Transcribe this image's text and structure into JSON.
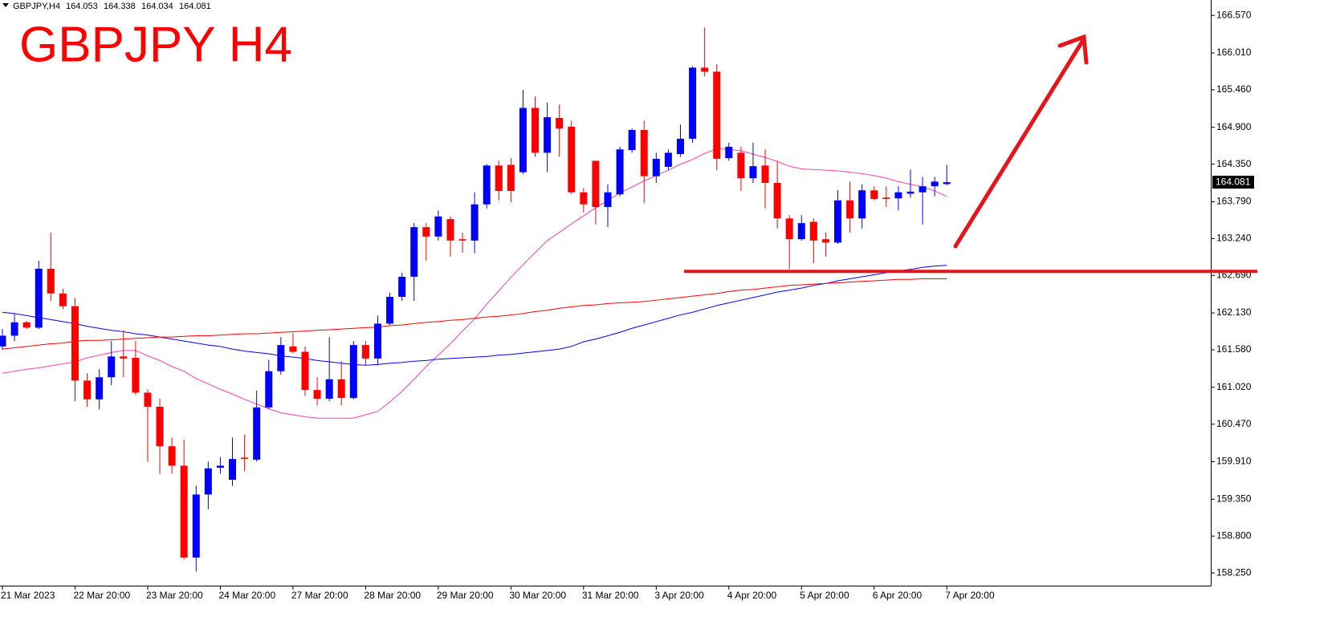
{
  "chart_data": {
    "type": "candlestick",
    "symbol": "GBPJPY,H4",
    "title": "GBPJPY H4",
    "up_color": "#0000ff",
    "down_color": "#ff0000",
    "categories": [
      "21 Mar 2023",
      null,
      null,
      null,
      null,
      null,
      "22 Mar 20:00",
      null,
      null,
      null,
      null,
      null,
      "23 Mar 20:00",
      null,
      null,
      null,
      null,
      null,
      "24 Mar 20:00",
      null,
      null,
      null,
      null,
      null,
      "27 Mar 20:00",
      null,
      null,
      null,
      null,
      null,
      "28 Mar 20:00",
      null,
      null,
      null,
      null,
      null,
      "29 Mar 20:00",
      null,
      null,
      null,
      null,
      null,
      "30 Mar 20:00",
      null,
      null,
      null,
      null,
      null,
      "31 Mar 20:00",
      null,
      null,
      null,
      null,
      null,
      "3 Apr 20:00",
      null,
      null,
      null,
      null,
      null,
      "4 Apr 20:00",
      null,
      null,
      null,
      null,
      null,
      "5 Apr 20:00",
      null,
      null,
      null,
      null,
      null,
      "6 Apr 20:00",
      null,
      null,
      null,
      null,
      null,
      "7 Apr 20:00"
    ],
    "open": [
      161.63,
      161.79,
      161.99,
      161.91,
      162.79,
      162.42,
      162.23,
      161.12,
      160.84,
      161.17,
      161.48,
      161.46,
      160.94,
      160.73,
      160.14,
      159.85,
      158.48,
      159.42,
      159.82,
      159.64,
      159.97,
      159.94,
      160.72,
      161.26,
      161.63,
      161.55,
      160.98,
      160.85,
      161.14,
      160.86,
      161.65,
      161.45,
      161.97,
      162.37,
      162.67,
      163.41,
      163.27,
      163.53,
      163.23,
      163.21,
      163.75,
      164.33,
      164.34,
      164.23,
      165.19,
      164.52,
      165.04,
      164.91,
      163.93,
      164.4,
      163.71,
      163.9,
      164.56,
      164.86,
      164.17,
      164.31,
      164.5,
      164.73,
      165.79,
      165.73,
      164.44,
      164.52,
      164.14,
      164.33,
      164.07,
      163.54,
      163.23,
      163.49,
      163.23,
      163.18,
      163.81,
      163.54,
      163.96,
      163.85,
      163.84,
      163.91,
      163.93,
      164.02,
      164.053
    ],
    "high": [
      161.89,
      162.11,
      162.01,
      162.91,
      163.33,
      162.49,
      162.35,
      161.23,
      161.29,
      161.71,
      161.87,
      161.71,
      160.99,
      160.85,
      160.27,
      160.24,
      159.55,
      159.91,
      159.98,
      160.27,
      160.31,
      160.97,
      161.43,
      161.77,
      161.83,
      161.63,
      161.17,
      161.77,
      161.41,
      161.71,
      161.71,
      162.09,
      162.43,
      162.73,
      163.47,
      163.47,
      163.66,
      163.57,
      163.33,
      163.93,
      164.35,
      164.4,
      164.44,
      165.46,
      165.36,
      165.27,
      165.24,
      165.0,
      163.99,
      164.4,
      164.05,
      164.61,
      164.88,
      165.0,
      164.52,
      164.57,
      164.94,
      165.81,
      166.39,
      165.84,
      164.67,
      164.61,
      164.67,
      164.57,
      164.4,
      163.59,
      163.59,
      163.54,
      163.33,
      163.96,
      164.09,
      164.05,
      164.02,
      164.02,
      164.02,
      164.27,
      164.16,
      164.16,
      164.338
    ],
    "low": [
      161.58,
      161.71,
      161.89,
      161.89,
      162.31,
      162.19,
      160.81,
      160.73,
      160.69,
      161.05,
      161.17,
      160.91,
      159.91,
      159.73,
      159.73,
      158.45,
      158.27,
      159.2,
      159.73,
      159.55,
      159.77,
      159.91,
      160.69,
      161.21,
      161.53,
      160.89,
      160.75,
      160.81,
      160.75,
      160.84,
      161.35,
      161.35,
      161.95,
      162.31,
      162.31,
      162.91,
      163.21,
      162.97,
      163.03,
      163.02,
      163.69,
      163.81,
      163.78,
      164.2,
      164.46,
      164.23,
      164.46,
      163.9,
      163.63,
      163.45,
      163.41,
      163.87,
      164.52,
      163.77,
      164.07,
      164.26,
      164.46,
      164.67,
      165.66,
      164.26,
      164.4,
      163.95,
      164.07,
      163.69,
      163.39,
      162.79,
      163.21,
      162.87,
      162.97,
      163.16,
      163.33,
      163.39,
      163.81,
      163.71,
      163.66,
      163.85,
      163.45,
      163.87,
      164.034
    ],
    "close": [
      161.79,
      161.99,
      161.91,
      162.79,
      162.42,
      162.23,
      161.12,
      160.84,
      161.17,
      161.48,
      161.45,
      160.94,
      160.73,
      160.14,
      159.85,
      158.48,
      159.42,
      159.81,
      159.85,
      159.95,
      159.95,
      160.72,
      161.26,
      161.65,
      161.55,
      160.98,
      160.85,
      161.14,
      160.86,
      161.65,
      161.45,
      161.97,
      162.37,
      162.67,
      163.41,
      163.27,
      163.57,
      163.21,
      163.21,
      163.75,
      164.33,
      163.95,
      163.95,
      165.19,
      164.52,
      165.05,
      164.88,
      163.93,
      163.75,
      163.71,
      163.93,
      164.57,
      164.86,
      164.17,
      164.43,
      164.52,
      164.73,
      165.79,
      165.73,
      164.43,
      164.61,
      164.14,
      164.32,
      164.07,
      163.54,
      163.23,
      163.47,
      163.21,
      163.18,
      163.81,
      163.54,
      163.96,
      163.83,
      163.83,
      163.93,
      163.94,
      164.02,
      164.09,
      164.081
    ],
    "lines": [
      {
        "color": "#ff3fb0",
        "values": [
          161.23,
          161.26,
          161.29,
          161.31,
          161.34,
          161.37,
          161.4,
          161.46,
          161.5,
          161.54,
          161.57,
          161.57,
          161.49,
          161.42,
          161.33,
          161.26,
          161.15,
          161.07,
          160.99,
          160.92,
          160.84,
          160.77,
          160.7,
          160.64,
          160.61,
          160.58,
          160.56,
          160.56,
          160.56,
          160.56,
          160.61,
          160.66,
          160.8,
          160.96,
          161.14,
          161.33,
          161.5,
          161.67,
          161.86,
          162.04,
          162.26,
          162.46,
          162.66,
          162.85,
          163.03,
          163.21,
          163.33,
          163.46,
          163.58,
          163.7,
          163.81,
          163.92,
          164.01,
          164.1,
          164.18,
          164.26,
          164.35,
          164.42,
          164.51,
          164.58,
          164.57,
          164.55,
          164.5,
          164.45,
          164.39,
          164.32,
          164.28,
          164.27,
          164.26,
          164.25,
          164.23,
          164.21,
          164.18,
          164.14,
          164.09,
          164.05,
          164.01,
          163.95,
          163.87
        ]
      },
      {
        "color": "#0000ff",
        "values": [
          162.14,
          162.12,
          162.09,
          162.06,
          162.03,
          162.0,
          161.97,
          161.93,
          161.9,
          161.87,
          161.85,
          161.82,
          161.8,
          161.77,
          161.74,
          161.71,
          161.68,
          161.65,
          161.63,
          161.59,
          161.56,
          161.54,
          161.52,
          161.49,
          161.47,
          161.45,
          161.42,
          161.4,
          161.38,
          161.36,
          161.35,
          161.36,
          161.38,
          161.39,
          161.41,
          161.42,
          161.44,
          161.45,
          161.46,
          161.47,
          161.48,
          161.5,
          161.51,
          161.53,
          161.55,
          161.57,
          161.59,
          161.63,
          161.7,
          161.74,
          161.79,
          161.84,
          161.9,
          161.95,
          162.0,
          162.05,
          162.1,
          162.14,
          162.19,
          162.24,
          162.28,
          162.32,
          162.36,
          162.4,
          162.44,
          162.47,
          162.5,
          162.54,
          162.57,
          162.61,
          162.64,
          162.67,
          162.7,
          162.73,
          162.76,
          162.78,
          162.81,
          162.83,
          162.84
        ]
      },
      {
        "color": "#ff0000",
        "values": [
          161.59,
          161.61,
          161.63,
          161.65,
          161.67,
          161.68,
          161.71,
          161.72,
          161.72,
          161.73,
          161.74,
          161.75,
          161.76,
          161.77,
          161.77,
          161.78,
          161.79,
          161.79,
          161.8,
          161.81,
          161.82,
          161.82,
          161.83,
          161.84,
          161.85,
          161.86,
          161.87,
          161.88,
          161.89,
          161.9,
          161.91,
          161.92,
          161.94,
          161.95,
          161.97,
          161.99,
          162.0,
          162.02,
          162.03,
          162.05,
          162.07,
          162.08,
          162.1,
          162.12,
          162.15,
          162.17,
          162.2,
          162.22,
          162.24,
          162.25,
          162.27,
          162.28,
          162.29,
          162.3,
          162.32,
          162.34,
          162.36,
          162.38,
          162.4,
          162.42,
          162.45,
          162.47,
          162.48,
          162.5,
          162.52,
          162.54,
          162.55,
          162.56,
          162.57,
          162.58,
          162.59,
          162.6,
          162.61,
          162.62,
          162.63,
          162.63,
          162.64,
          162.64,
          162.64
        ]
      }
    ],
    "hline": {
      "value": 162.75,
      "color": "#e8141c"
    },
    "ylim": [
      158.06,
      166.8
    ],
    "yticks": [
      {
        "value": 166.57,
        "label": "166.570"
      },
      {
        "value": 166.01,
        "label": "166.010"
      },
      {
        "value": 165.46,
        "label": "165.460"
      },
      {
        "value": 164.9,
        "label": "164.900"
      },
      {
        "value": 164.35,
        "label": "164.350"
      },
      {
        "value": 163.79,
        "label": "163.790"
      },
      {
        "value": 163.24,
        "label": "163.240"
      },
      {
        "value": 162.69,
        "label": "162.690"
      },
      {
        "value": 162.13,
        "label": "162.130"
      },
      {
        "value": 161.58,
        "label": "161.580"
      },
      {
        "value": 161.02,
        "label": "161.020"
      },
      {
        "value": 160.47,
        "label": "160.470"
      },
      {
        "value": 159.91,
        "label": "159.910"
      },
      {
        "value": 159.35,
        "label": "159.350"
      },
      {
        "value": 158.8,
        "label": "158.800"
      },
      {
        "value": 158.25,
        "label": "158.250"
      }
    ]
  }
}
